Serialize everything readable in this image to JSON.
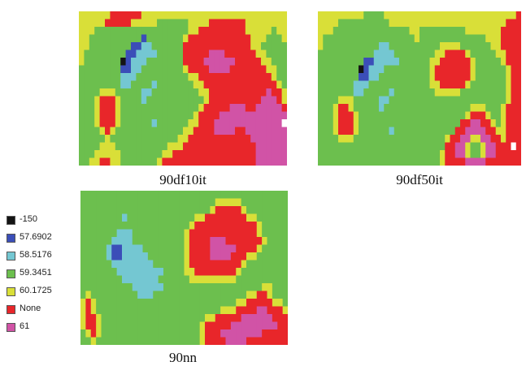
{
  "chart_data": {
    "type": "heatmap",
    "legend": {
      "placement": "left",
      "entries": [
        {
          "label": "-150",
          "color": "#141414"
        },
        {
          "label": "57.6902",
          "color": "#3b4eb8"
        },
        {
          "label": "58.5176",
          "color": "#74c7d2"
        },
        {
          "label": "59.3451",
          "color": "#6cbf4e"
        },
        {
          "label": "60.1725",
          "color": "#d9df38"
        },
        {
          "label": "None",
          "color": "#e8262a"
        },
        {
          "label": "61",
          "color": "#d153a6"
        }
      ]
    },
    "panels": [
      {
        "caption": "90df10it",
        "rows": [
          "YYYYYYRRRRRRYYYYYYYYYYYYYYYYYYYYYYYYYYYY",
          "YYYYYRRRRRYYYYYGGGGGGYYYYRRRRRRRYYYYYYYY",
          "YYYGGGGGGGGGGGGGGGGGGYYRRRRRRRRRYYYYYGYY",
          "YYGGGGGGGGGGBGGGGGGGYRRRRRRRRRRRRYYYGGGY",
          "YYGGGGGGGGBBCCGGGGGGRRRRRRRRRRRRRYYGGGGG",
          "YGGGGGGGGBBCCCCGGGGGRRRRRMMMRRRRRRYYGGGG",
          "YGGGGGGGDBCCCGGGGGGGRRRRMMMMMMRRRRRYYGGG",
          "GGGGGGGGBBCCGGGGGGGGYRRRRMMMMRRRRRRRYYGG",
          "GGGGGGGGCCCGGGGGGGGGGYYRRRRRRRRRRRRRRYGG",
          "GGGGGGGGCCGGGGCGGGGGGGYYRRRRRRRRRRRRRRYG",
          "GGGGYYYGGGGGCCGGGGGGGGGYYRRRRRRRRRRRMRRY",
          "GGGYRRRYGGGGCGGGGGGGGGGGYRRRRRRRRRRMMMRY",
          "GGGYRRRYGGGGGGGGGGGGGGGYRRRRRMMMRRMMMMMR",
          "GGGYRRRYGGGGGGGGGGGGGGYRRRRMMMMMMMMMMMMM",
          "GGGYRRRYGGGGGGCGGGGGGYYRRRMMMMMMMMMMMMMW",
          "GGGGYRYGGGGGGGGGGGGGYYRRRRMMMMRRMMMMMMMM",
          "GGGGGYGGGGGGGGGGGGGYYRRRRRRRRRRRRMMMMMMM",
          "GGGGYYYGGGGGGGGGGYYYRRRRRRRRRRRRRRMMMMMM",
          "GGGYYYYYGGGGGGGGYYRRRRRRRRRRRRRRRRMMMMMM",
          "GGYYRRYYGGGGGGGYRRRRRRRRRRRRRRRRRRMMMMMM"
        ]
      },
      {
        "caption": "90df50it",
        "rows": [
          "YYYYYYYYYGGGGYYYYYYYYYYYYYYYYYYYYYYYYYYR",
          "YYYYGGGGGGGGGGYYYYYYYYYYYYYYYYYYYYYYYRRR",
          "YYYGGGGGGGGGGGGGGGYYGGGGGGGGGYYYYYYYRRRR",
          "YGGGGGGGGGGGGGGGGGGYGGGGGGGGGGGGGYYYRRRR",
          "YGGGGGGGGGGGCCGGGGGGGGGGYYYYGGGGGGYYRRRR",
          "GGGGGGGGGGGCCCCGGGGGGGGYYRRRRYGGGGGYYRRR",
          "GGGGGGGGGBBCCCCCGGGGGGYYRRRRRRYGGGGGYRRR",
          "GGGGGGGGDBCCCGGGGGGGGGYRRRRRRRYGGGGGGYRR",
          "GGGGGGGGBBCCGGGGGGGGGGYRRRRRRRYGGGGGGYRR",
          "GGGGGGGCCCGGGGGGGGGGGGYYRRRRRYGGGGGGGYRR",
          "GGGGGGGCCGGGGGCGGGGGGGGYYYYYGGGGGGGGGYRR",
          "GGGGYYYGGGGGCCGGGGGGGGGGGGGGGGGGGGGGGYRR",
          "GGGYRRYGGGGGCGGGGGGGGGGGGGGGGGYYYGGGYRRR",
          "GGGYRRRYGGGGGGGGGGGGGGGGGGGGGYRRRYGGYRRR",
          "GGGYRRRYGGGGGGGGGGGGGGGGGGGGRRMMRRYGYRRR",
          "GGGYRRRYGGGGGGCGGGGGGGGGGGGRRMMMMRRYYRRR",
          "GGGGYYYGGGGGGGGGGGGGGGGGGYRRMMYYMMRRYRRR",
          "GGGGGGGGGGGGGGGGGGGGGGGGGRRMMYGGYMMRRRWR",
          "GGGGGGGGGGGGGGGGGGGGGGGGYRRMMYGGYMMRRRRR",
          "GGGGGGGGGGGGGGGGGGGGGGGGYRRRRMMMMRRRRRRR"
        ]
      },
      {
        "caption": "90nn",
        "rows": [
          "GGGGGGGGGGGGGGGGGGGGGGGGGGGGGGGGGGGGGGGG",
          "GGGGGGGGGGGGGGGGGGGGGGGGGGYYYYYGGGGGGGGG",
          "GGGGGGGGGGGGGGGGGGGGGGGGGYRRRRRYGGGGGGGG",
          "GGGGGGGGCGGGGGGGGGGGGGYYRRRRRRRRYYGGGGGG",
          "GGGGGGGGGGGGGGGGGGGGGYRRRRRRRRRRRRYGGGGG",
          "GGGGGGGCCCGGGGGGGGGGYRRRRRRRRRRRRRYGGGGG",
          "GGGGGGCCCCGGGGGGGGGGYRRRRMMMRRRRRRRYGGGG",
          "GGGGGCBBCCCCGGGGGGGGYRRRRMMMMMRRRRYGGGGG",
          "GGGGGCBBCCCCCGGGGGGGYRRRRMMMMRRRYYGGGGGG",
          "GGGGGGCCCCCCCCGGGGGGYRRRRRRRRRRYGGGGGGGG",
          "GGGGGGGCCCCCCCCCGGGGYYRRRRRRRRYGGGGGGGGG",
          "GGGGGGGGCCCCCCCGGGGGGYYYYYYYYYGGGGGGGGGG",
          "GGGGGGGGGGCCCCCCGGGGGGGGGGGGGGGGGGGYYGGG",
          "GYGGGGGGGGGCCCGGGGGGGGGGGGGGGGGGYYRRYGGG",
          "YRYGGGGGGGGGGGGGGGGGGGGGGGGGGGYYRRRRRYYG",
          "YRYGGGGGGGGGGGGGGGGGGGGGGGGYYYRRRRMMRRRY",
          "YRRYGGGGGGGGGGGGGGGGGGGGYYRRRRRMMMMMMRRR",
          "YRRYGGGGGGGGGGGGGGGGGGGYRRRRRMMMMMMMMMRR",
          "GYRYGGGGGGGGGGGGGGGGGGGYRRRMMMMMMMMRRRRR",
          "GGYGGGGGGGGGGGGGGGGGGGGYRRRRMMMMRRRRRRRR"
        ]
      }
    ],
    "cell_codes": {
      "D": "#141414",
      "B": "#3b4eb8",
      "C": "#74c7d2",
      "G": "#6cbf4e",
      "Y": "#d9df38",
      "R": "#e8262a",
      "M": "#d153a6",
      "W": "#ffffff"
    }
  }
}
